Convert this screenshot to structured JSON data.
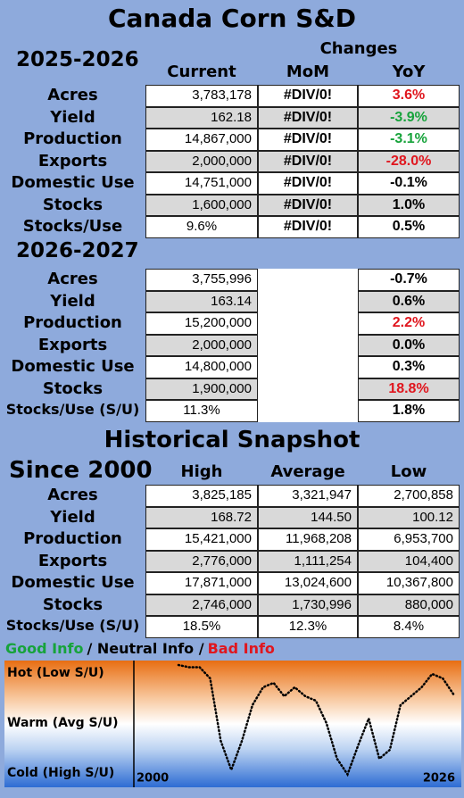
{
  "title": "Canada Corn S&D",
  "sections": [
    {
      "heading": "2025-2026",
      "group_header": "Changes",
      "columns": [
        "Current",
        "MoM",
        "YoY"
      ],
      "rows": [
        {
          "label": "Acres",
          "cells": [
            "3,783,178",
            "#DIV/0!",
            "3.6%"
          ],
          "yoy_color": "#e0161e"
        },
        {
          "label": "Yield",
          "cells": [
            "162.18",
            "#DIV/0!",
            "-3.9%"
          ],
          "yoy_color": "#17a33b"
        },
        {
          "label": "Production",
          "cells": [
            "14,867,000",
            "#DIV/0!",
            "-3.1%"
          ],
          "yoy_color": "#17a33b"
        },
        {
          "label": "Exports",
          "cells": [
            "2,000,000",
            "#DIV/0!",
            "-28.0%"
          ],
          "yoy_color": "#e0161e"
        },
        {
          "label": "Domestic Use",
          "cells": [
            "14,751,000",
            "#DIV/0!",
            "-0.1%"
          ],
          "yoy_color": "#000000"
        },
        {
          "label": "Stocks",
          "cells": [
            "1,600,000",
            "#DIV/0!",
            "1.0%"
          ],
          "yoy_color": "#000000"
        },
        {
          "label": "Stocks/Use",
          "cells": [
            "9.6%",
            "#DIV/0!",
            "0.5%"
          ],
          "yoy_color": "#000000"
        }
      ]
    },
    {
      "heading": "2026-2027",
      "rows": [
        {
          "label": "Acres",
          "cells": [
            "3,755,996",
            null,
            "-0.7%"
          ],
          "yoy_color": "#000000"
        },
        {
          "label": "Yield",
          "cells": [
            "163.14",
            null,
            "0.6%"
          ],
          "yoy_color": "#000000"
        },
        {
          "label": "Production",
          "cells": [
            "15,200,000",
            null,
            "2.2%"
          ],
          "yoy_color": "#e0161e"
        },
        {
          "label": "Exports",
          "cells": [
            "2,000,000",
            null,
            "0.0%"
          ],
          "yoy_color": "#000000"
        },
        {
          "label": "Domestic Use",
          "cells": [
            "14,800,000",
            null,
            "0.3%"
          ],
          "yoy_color": "#000000"
        },
        {
          "label": "Stocks",
          "cells": [
            "1,900,000",
            null,
            "18.8%"
          ],
          "yoy_color": "#e0161e"
        },
        {
          "label": "Stocks/Use (S/U)",
          "cells": [
            "11.3%",
            null,
            "1.8%"
          ],
          "yoy_color": "#000000"
        }
      ]
    },
    {
      "title": "Historical Snapshot",
      "heading": "Since 2000",
      "columns": [
        "High",
        "Average",
        "Low"
      ],
      "rows": [
        {
          "label": "Acres",
          "cells": [
            "3,825,185",
            "3,321,947",
            "2,700,858"
          ]
        },
        {
          "label": "Yield",
          "cells": [
            "168.72",
            "144.50",
            "100.12"
          ]
        },
        {
          "label": "Production",
          "cells": [
            "15,421,000",
            "11,968,208",
            "6,953,700"
          ]
        },
        {
          "label": "Exports",
          "cells": [
            "2,776,000",
            "1,111,254",
            "104,400"
          ]
        },
        {
          "label": "Domestic Use",
          "cells": [
            "17,871,000",
            "13,024,600",
            "10,367,800"
          ]
        },
        {
          "label": "Stocks",
          "cells": [
            "2,746,000",
            "1,730,996",
            "880,000"
          ]
        },
        {
          "label": "Stocks/Use (S/U)",
          "cells": [
            "18.5%",
            "12.3%",
            "8.4%"
          ]
        }
      ]
    }
  ],
  "legend": {
    "good": "Good Info",
    "neutral": "/ Neutral Info /",
    "bad": "Bad Info"
  },
  "heat_chart": {
    "type": "line",
    "labels": [
      "Hot (Low S/U)",
      "Warm (Avg S/U)",
      "Cold (High S/U)"
    ],
    "x_labels": [
      "2000",
      "2026"
    ],
    "values": [
      100,
      98,
      98,
      88,
      32,
      6,
      32,
      64,
      80,
      84,
      72,
      80,
      72,
      68,
      48,
      16,
      2,
      28,
      52,
      16,
      24,
      64,
      72,
      80,
      92,
      88,
      74
    ],
    "ylim": [
      0,
      100
    ]
  }
}
